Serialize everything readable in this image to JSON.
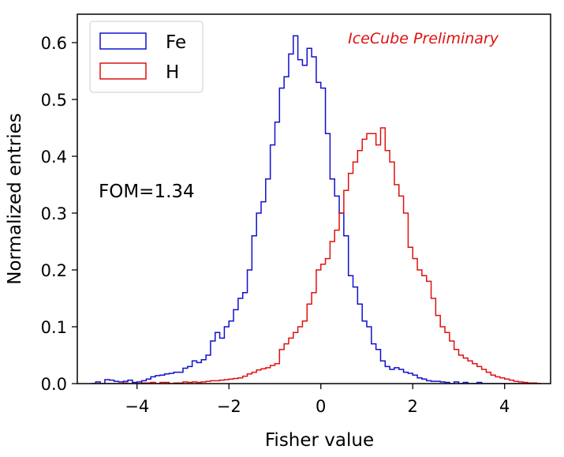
{
  "colors": {
    "fe": "#1010cc",
    "h": "#e01010",
    "prelim": "#e01010",
    "axis": "#000000"
  },
  "chart_data": {
    "type": "histogram",
    "xlabel": "Fisher value",
    "ylabel": "Normalized entries",
    "xlim": [
      -5.3,
      5.0
    ],
    "ylim": [
      0.0,
      0.65
    ],
    "xticks": [
      -4,
      -2,
      0,
      2,
      4
    ],
    "xtick_labels": [
      "−4",
      "−2",
      "0",
      "2",
      "4"
    ],
    "yticks": [
      0.0,
      0.1,
      0.2,
      0.3,
      0.4,
      0.5,
      0.6
    ],
    "ytick_labels": [
      "0.0",
      "0.1",
      "0.2",
      "0.3",
      "0.4",
      "0.5",
      "0.6"
    ],
    "legend": {
      "position": "top-left",
      "entries": [
        "Fe",
        "H"
      ]
    },
    "annotations": {
      "fom": "FOM=1.34",
      "preliminary": "IceCube Preliminary"
    },
    "bin_start": -5.0,
    "bin_width": 0.1,
    "series": [
      {
        "name": "Fe",
        "values": [
          0.0,
          0.003,
          0.0,
          0.007,
          0.006,
          0.004,
          0.003,
          0.004,
          0.006,
          0.002,
          0.003,
          0.005,
          0.008,
          0.012,
          0.014,
          0.015,
          0.017,
          0.018,
          0.02,
          0.02,
          0.027,
          0.03,
          0.04,
          0.037,
          0.042,
          0.05,
          0.075,
          0.09,
          0.08,
          0.1,
          0.11,
          0.13,
          0.15,
          0.16,
          0.2,
          0.26,
          0.3,
          0.32,
          0.36,
          0.42,
          0.46,
          0.52,
          0.54,
          0.58,
          0.612,
          0.57,
          0.56,
          0.59,
          0.575,
          0.53,
          0.52,
          0.44,
          0.36,
          0.33,
          0.3,
          0.26,
          0.19,
          0.17,
          0.14,
          0.11,
          0.1,
          0.07,
          0.06,
          0.04,
          0.03,
          0.025,
          0.028,
          0.025,
          0.02,
          0.018,
          0.015,
          0.01,
          0.008,
          0.005,
          0.004,
          0.004,
          0.003,
          0.002,
          0.0,
          0.003,
          0.0,
          0.002,
          0.0,
          0.0,
          0.002,
          0.0,
          0.0,
          0.0,
          0.0,
          0.0,
          0.0,
          0.0,
          0.0,
          0.0,
          0.0,
          0.0,
          0.0,
          0.0
        ]
      },
      {
        "name": "H",
        "values": [
          0.0,
          0.0,
          0.0,
          0.0,
          0.0,
          0.0,
          0.0,
          0.001,
          0.0,
          0.0,
          0.0,
          0.001,
          0.001,
          0.002,
          0.0,
          0.002,
          0.002,
          0.0,
          0.001,
          0.001,
          0.003,
          0.002,
          0.003,
          0.002,
          0.003,
          0.004,
          0.005,
          0.005,
          0.006,
          0.007,
          0.008,
          0.009,
          0.01,
          0.013,
          0.017,
          0.02,
          0.024,
          0.026,
          0.028,
          0.032,
          0.035,
          0.06,
          0.07,
          0.08,
          0.09,
          0.1,
          0.11,
          0.14,
          0.16,
          0.2,
          0.21,
          0.22,
          0.25,
          0.27,
          0.3,
          0.34,
          0.37,
          0.39,
          0.41,
          0.43,
          0.44,
          0.44,
          0.42,
          0.45,
          0.41,
          0.39,
          0.35,
          0.33,
          0.3,
          0.24,
          0.22,
          0.2,
          0.19,
          0.18,
          0.15,
          0.12,
          0.1,
          0.09,
          0.075,
          0.06,
          0.05,
          0.045,
          0.04,
          0.035,
          0.03,
          0.025,
          0.02,
          0.015,
          0.012,
          0.01,
          0.008,
          0.006,
          0.004,
          0.003,
          0.002,
          0.001,
          0.001,
          0.0
        ]
      }
    ]
  }
}
